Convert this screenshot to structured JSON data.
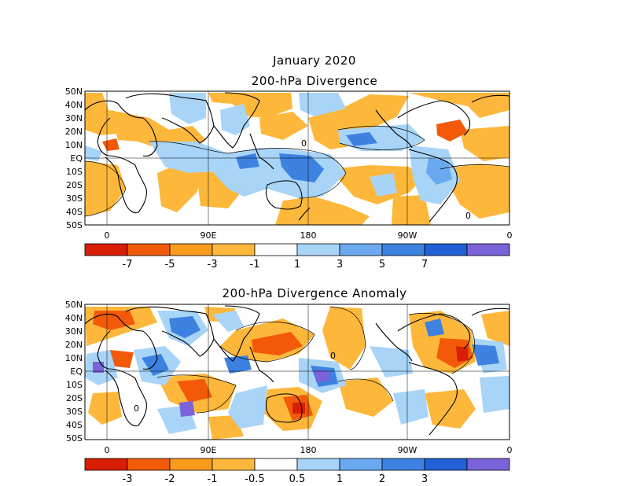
{
  "title": {
    "date": "January 2020",
    "panel1": "200-hPa Divergence",
    "panel2": "200-hPa Divergence Anomaly"
  },
  "map": {
    "lat_labels": [
      "50N",
      "40N",
      "30N",
      "20N",
      "10N",
      "EQ",
      "10S",
      "20S",
      "30S",
      "40S",
      "50S"
    ],
    "lon_labels": [
      "0",
      "90E",
      "180",
      "90W",
      "0"
    ],
    "zero_label": "0"
  },
  "colorbar1": {
    "colors": [
      "#d81e05",
      "#f25a0a",
      "#fa9b1e",
      "#fdb73a",
      "#ffffff",
      "#a8d4f7",
      "#6aa9ef",
      "#3d82e0",
      "#2160d6",
      "#7b63d9"
    ],
    "labels": [
      "-7",
      "-5",
      "-3",
      "-1",
      "1",
      "3",
      "5",
      "7"
    ]
  },
  "colorbar2": {
    "colors": [
      "#d81e05",
      "#f25a0a",
      "#fa9b1e",
      "#fdb73a",
      "#ffffff",
      "#a8d4f7",
      "#6aa9ef",
      "#3d82e0",
      "#2160d6",
      "#7b63d9"
    ],
    "labels": [
      "-3",
      "-2",
      "-1",
      "-0.5",
      "0.5",
      "1",
      "2",
      "3"
    ]
  },
  "palette": {
    "neg_strong": "#f25a0a",
    "neg": "#fdb73a",
    "pos": "#a8d4f7",
    "pos_strong": "#3d82e0",
    "pos_max": "#7b63d9"
  }
}
